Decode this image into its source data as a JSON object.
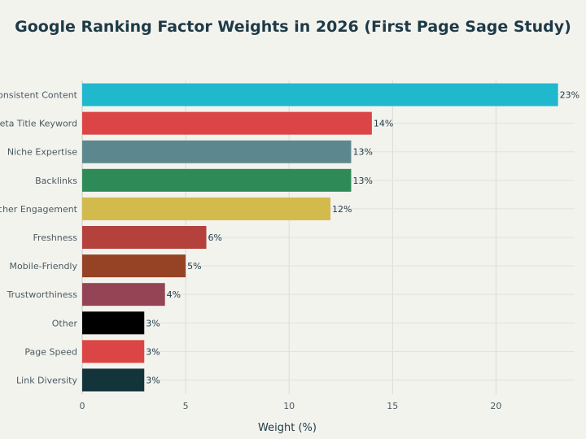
{
  "chart_data": {
    "type": "bar",
    "orientation": "horizontal",
    "title": "Google Ranking Factor Weights in 2026 (First Page Sage Study)",
    "xlabel": "Weight (%)",
    "ylabel": "",
    "xlim": [
      0,
      23.8
    ],
    "xticks": [
      0,
      5,
      10,
      15,
      20
    ],
    "grid": true,
    "categories": [
      "Consistent Content",
      "Meta Title Keyword",
      "Niche Expertise",
      "Backlinks",
      "Searcher Engagement",
      "Freshness",
      "Mobile-Friendly",
      "Trustworthiness",
      "Other",
      "Page Speed",
      "Link Diversity"
    ],
    "values": [
      23,
      14,
      13,
      13,
      12,
      6,
      5,
      4,
      3,
      3,
      3
    ],
    "data_labels": [
      "23%",
      "14%",
      "13%",
      "13%",
      "12%",
      "6%",
      "5%",
      "4%",
      "3%",
      "3%",
      "3%"
    ],
    "colors": [
      "#1fb8cd",
      "#db4545",
      "#5d878f",
      "#2e8b57",
      "#d2ba4c",
      "#b4413c",
      "#964325",
      "#944454",
      "#000000",
      "#db4545",
      "#13343b"
    ]
  }
}
